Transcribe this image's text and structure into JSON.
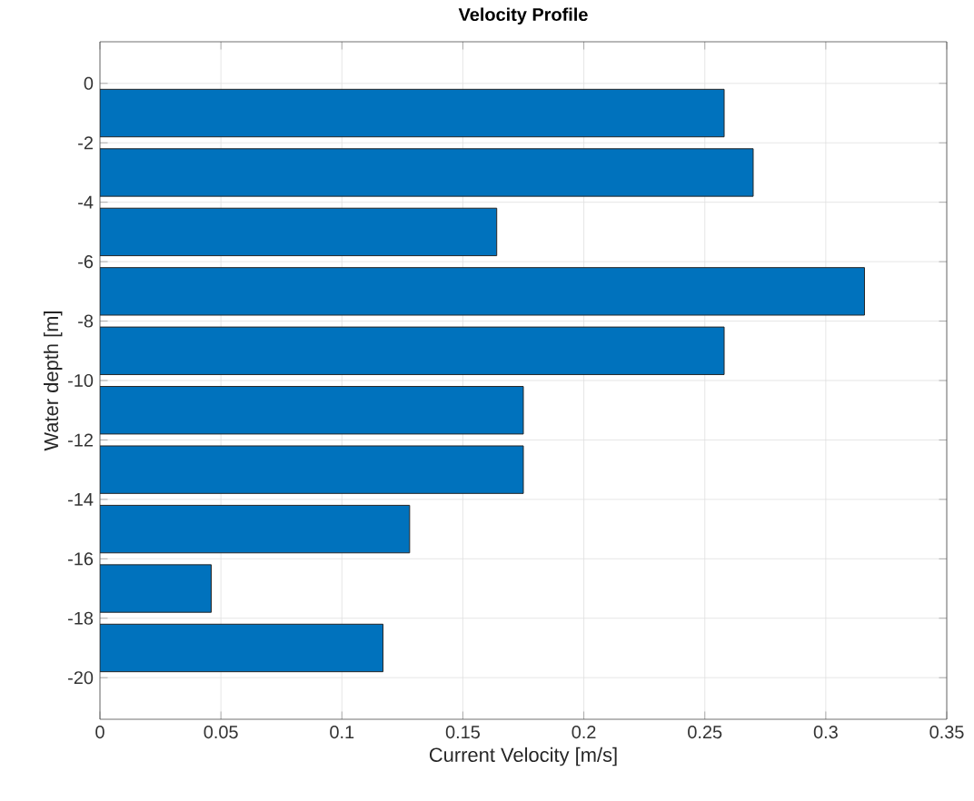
{
  "chart_data": {
    "type": "bar",
    "orientation": "horizontal",
    "title": "Velocity Profile",
    "xlabel": "Current Velocity [m/s]",
    "ylabel": "Water depth [m]",
    "x": [
      -1,
      -3,
      -5,
      -7,
      -9,
      -11,
      -13,
      -15,
      -17,
      -19
    ],
    "values": [
      0.258,
      0.27,
      0.164,
      0.316,
      0.258,
      0.175,
      0.175,
      0.128,
      0.046,
      0.117
    ],
    "color": "#0072bd",
    "xlim": [
      0,
      0.35
    ],
    "xticks": [
      0,
      0.05,
      0.1,
      0.15,
      0.2,
      0.25,
      0.3,
      0.35
    ],
    "ylim": [
      -21.4,
      1.4
    ],
    "yticks": [
      0,
      -2,
      -4,
      -6,
      -8,
      -10,
      -12,
      -14,
      -16,
      -18,
      -20
    ],
    "grid": true
  }
}
